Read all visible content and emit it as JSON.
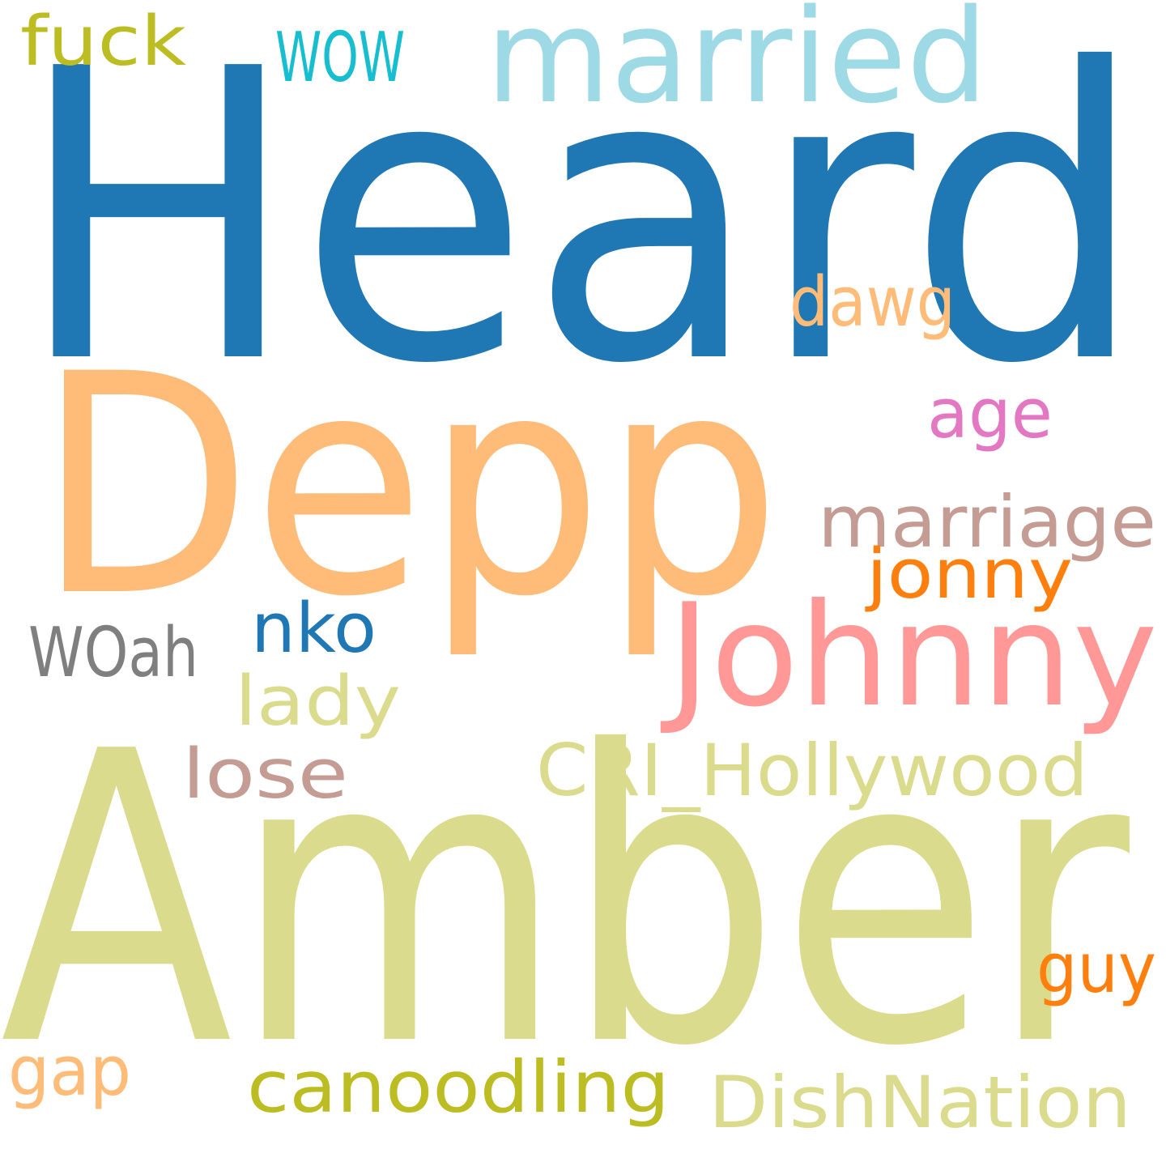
{
  "words": {
    "heard": {
      "text": "Heard",
      "color": "#1f77b4"
    },
    "amber": {
      "text": "Amber",
      "color": "#dbdb8d"
    },
    "depp": {
      "text": "Depp",
      "color": "#ffbb78"
    },
    "johnny": {
      "text": "Johnny",
      "color": "#ff9896"
    },
    "married": {
      "text": "married",
      "color": "#9edae5"
    },
    "marriage": {
      "text": "marriage",
      "color": "#c49c94"
    },
    "cri_hollywood": {
      "text": "CRI_Hollywood",
      "color": "#dbdb8d"
    },
    "dishnation": {
      "text": "DishNation",
      "color": "#dbdb8d"
    },
    "canoodling": {
      "text": "canoodling",
      "color": "#bcbd22"
    },
    "fuck": {
      "text": "fuck",
      "color": "#bcbd22"
    },
    "wow": {
      "text": "WOW",
      "color": "#17becf"
    },
    "woah": {
      "text": "WOah",
      "color": "#7f7f7f"
    },
    "nko": {
      "text": "nko",
      "color": "#1f77b4"
    },
    "lady": {
      "text": "lady",
      "color": "#dbdb8d"
    },
    "lose": {
      "text": "lose",
      "color": "#c49c94"
    },
    "dawg": {
      "text": "dawg",
      "color": "#ffbb78"
    },
    "age": {
      "text": "age",
      "color": "#e377c2"
    },
    "jonny": {
      "text": "jonny",
      "color": "#ff7f0e"
    },
    "guy": {
      "text": "guy",
      "color": "#ff7f0e"
    },
    "gap": {
      "text": "gap",
      "color": "#ffbb78"
    }
  }
}
